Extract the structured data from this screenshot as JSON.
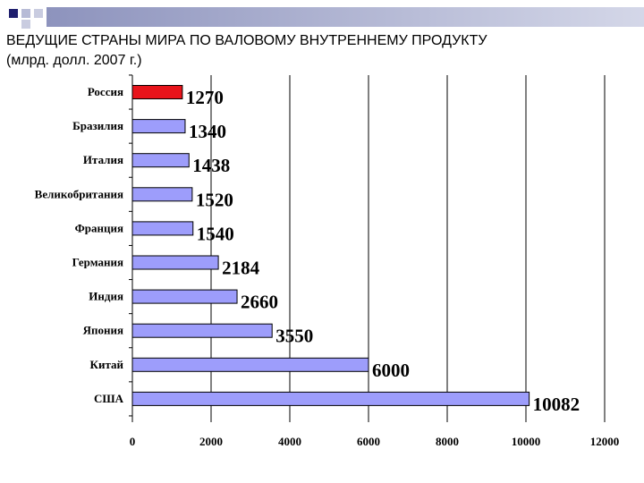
{
  "slide": {
    "title_line1": "ВЕДУЩИЕ СТРАНЫ МИРА ПО ВАЛОВОМУ ВНУТРЕННЕМУ ПРОДУКТУ",
    "title_line2": "(млрд. долл. 2007 г.)"
  },
  "colors": {
    "highlight_bar": "#e8141b",
    "bar": "#9d9dfb",
    "bar_stroke": "#000000",
    "decor_square_dark": "#1f1f6e",
    "decor_gradient_end": "#d4d7e8"
  },
  "chart_data": {
    "type": "bar",
    "orientation": "horizontal",
    "categories": [
      "Россия",
      "Бразилия",
      "Италия",
      "Великобритания",
      "Франция",
      "Германия",
      "Индия",
      "Япония",
      "Китай",
      "США"
    ],
    "values": [
      1270,
      1340,
      1438,
      1520,
      1540,
      2184,
      2660,
      3550,
      6000,
      10082
    ],
    "value_labels": [
      "1270",
      "1340",
      "1438",
      "1520",
      "1540",
      "2184",
      "2660",
      "3550",
      "6000",
      "10082"
    ],
    "highlighted_category": "Россия",
    "xlim": [
      0,
      12000
    ],
    "xticks": [
      0,
      2000,
      4000,
      6000,
      8000,
      10000,
      12000
    ],
    "xtick_labels": [
      "0",
      "2000",
      "4000",
      "6000",
      "8000",
      "10000",
      "12000"
    ],
    "grid": true,
    "title": "",
    "xlabel": "",
    "ylabel": ""
  }
}
